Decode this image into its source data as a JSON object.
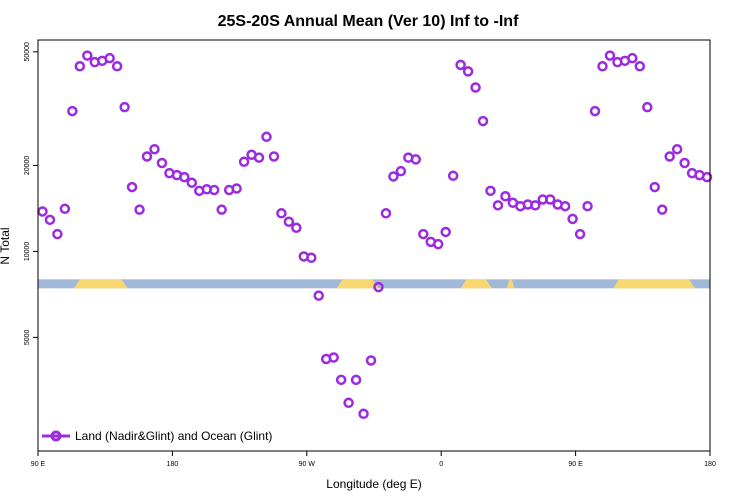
{
  "chart_data": {
    "type": "scatter",
    "title": "25S-20S Annual Mean (Ver 10)   Inf to -Inf",
    "xlabel": "Longitude (deg E)",
    "ylabel": "N Total",
    "y_scale": "log",
    "xlim": [
      0,
      45
    ],
    "ylim": [
      2000,
      55000
    ],
    "x_ticks": [
      {
        "pos": 0,
        "label": "90 E"
      },
      {
        "pos": 9,
        "label": "180"
      },
      {
        "pos": 18,
        "label": "90 W"
      },
      {
        "pos": 27,
        "label": "0"
      },
      {
        "pos": 36,
        "label": "90 E"
      },
      {
        "pos": 45,
        "label": "180"
      }
    ],
    "y_ticks": [
      {
        "value": 50000,
        "label": "50000"
      },
      {
        "value": 20000,
        "label": "20000"
      },
      {
        "value": 10000,
        "label": "10000"
      },
      {
        "value": 5000,
        "label": "5000"
      }
    ],
    "land_ocean_bar": {
      "y_value": 7700,
      "ocean_color": "#a2b8d8",
      "land_color": "#f8d670",
      "land_segments": [
        [
          2.4,
          6.0
        ],
        [
          20.0,
          22.8
        ],
        [
          28.3,
          30.4
        ],
        [
          31.4,
          31.9
        ],
        [
          38.5,
          44.0
        ]
      ]
    },
    "legend": {
      "label": "Land (Nadir&Glint) and Ocean (Glint)",
      "position": "bottom-left"
    },
    "series": [
      {
        "name": "Land (Nadir&Glint) and Ocean (Glint)",
        "color": "#9b2be0",
        "marker": "open-circle",
        "x": [
          0.3,
          0.8,
          1.3,
          1.8,
          2.3,
          2.8,
          3.3,
          3.8,
          4.3,
          4.8,
          5.3,
          5.8,
          6.3,
          6.8,
          7.3,
          7.8,
          8.3,
          8.8,
          9.3,
          9.8,
          10.3,
          10.8,
          11.3,
          11.8,
          12.3,
          12.8,
          13.3,
          13.8,
          14.3,
          14.8,
          15.3,
          15.8,
          16.3,
          16.8,
          17.3,
          17.8,
          18.3,
          18.8,
          19.3,
          19.8,
          20.3,
          20.8,
          21.3,
          21.8,
          22.3,
          22.8,
          23.3,
          23.8,
          24.3,
          24.8,
          25.3,
          25.8,
          26.3,
          26.8,
          27.3,
          27.8,
          28.3,
          28.8,
          29.3,
          29.8,
          30.3,
          30.8,
          31.3,
          31.8,
          32.3,
          32.8,
          33.3,
          33.8,
          34.3,
          34.8,
          35.3,
          35.8,
          36.3,
          36.8,
          37.3,
          37.8,
          38.3,
          38.8,
          39.3,
          39.8,
          40.3,
          40.8,
          41.3,
          41.8,
          42.3,
          42.8,
          43.3,
          43.8,
          44.3,
          44.8
        ],
        "values": [
          13800,
          12900,
          11500,
          14100,
          31000,
          44500,
          48500,
          46000,
          46500,
          47500,
          44500,
          32000,
          16800,
          14000,
          21500,
          22800,
          20400,
          18800,
          18500,
          18200,
          17400,
          16300,
          16500,
          16400,
          14000,
          16400,
          16600,
          20600,
          21800,
          21300,
          25200,
          21500,
          13600,
          12700,
          12100,
          9600,
          9500,
          7000,
          4200,
          4250,
          3550,
          2950,
          3550,
          2700,
          4150,
          7500,
          13600,
          18300,
          19100,
          21300,
          21000,
          11500,
          10800,
          10600,
          11700,
          18400,
          45000,
          42700,
          37500,
          28600,
          16300,
          14500,
          15600,
          14800,
          14400,
          14600,
          14500,
          15200,
          15200,
          14600,
          14400,
          13000,
          11500,
          14400,
          31000,
          44500,
          48500,
          46000,
          46500,
          47500,
          44500,
          32000,
          16800,
          14000,
          21500,
          22800,
          20400,
          18800,
          18500,
          18200
        ]
      }
    ]
  }
}
